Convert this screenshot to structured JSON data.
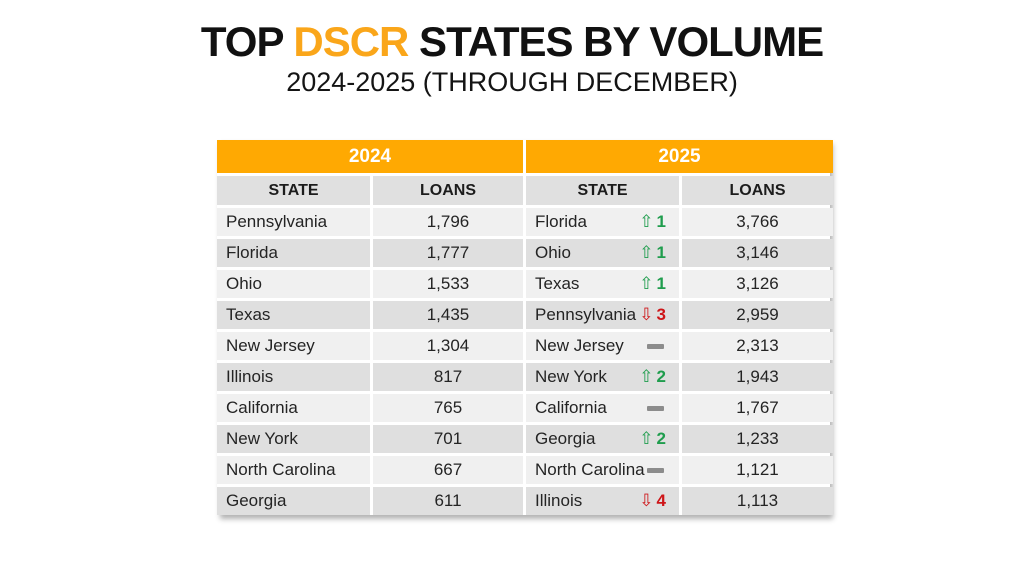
{
  "title": {
    "part1": "TOP ",
    "highlight": "DSCR",
    "part2": " STATES BY VOLUME"
  },
  "subtitle": "2024-2025 (THROUGH DECEMBER)",
  "colors": {
    "accent_orange": "#FFA902",
    "title_orange": "#FAA61A",
    "header_gray": "#E0E0E0",
    "row_light": "#F0F0F0",
    "row_dark": "#DFDFDF",
    "up_green": "#1F9D4D",
    "down_red": "#CE1518",
    "dash_gray": "#8C8C8C"
  },
  "icons": {
    "up": "⇧",
    "down": "⇩",
    "same": "dash-icon"
  },
  "table": {
    "group_headers": [
      "2024",
      "2025"
    ],
    "column_headers": [
      "STATE",
      "LOANS",
      "STATE",
      "LOANS"
    ],
    "rows": [
      {
        "state_2024": "Pennsylvania",
        "loans_2024": "1,796",
        "state_2025": "Florida",
        "change": {
          "dir": "up",
          "value": "1"
        },
        "loans_2025": "3,766"
      },
      {
        "state_2024": "Florida",
        "loans_2024": "1,777",
        "state_2025": "Ohio",
        "change": {
          "dir": "up",
          "value": "1"
        },
        "loans_2025": "3,146"
      },
      {
        "state_2024": "Ohio",
        "loans_2024": "1,533",
        "state_2025": "Texas",
        "change": {
          "dir": "up",
          "value": "1"
        },
        "loans_2025": "3,126"
      },
      {
        "state_2024": "Texas",
        "loans_2024": "1,435",
        "state_2025": "Pennsylvania",
        "change": {
          "dir": "down",
          "value": "3"
        },
        "loans_2025": "2,959"
      },
      {
        "state_2024": "New Jersey",
        "loans_2024": "1,304",
        "state_2025": "New Jersey",
        "change": {
          "dir": "same",
          "value": ""
        },
        "loans_2025": "2,313"
      },
      {
        "state_2024": "Illinois",
        "loans_2024": "817",
        "state_2025": "New York",
        "change": {
          "dir": "up",
          "value": "2"
        },
        "loans_2025": "1,943"
      },
      {
        "state_2024": "California",
        "loans_2024": "765",
        "state_2025": "California",
        "change": {
          "dir": "same",
          "value": ""
        },
        "loans_2025": "1,767"
      },
      {
        "state_2024": "New York",
        "loans_2024": "701",
        "state_2025": "Georgia",
        "change": {
          "dir": "up",
          "value": "2"
        },
        "loans_2025": "1,233"
      },
      {
        "state_2024": "North Carolina",
        "loans_2024": "667",
        "state_2025": "North Carolina",
        "change": {
          "dir": "same",
          "value": ""
        },
        "loans_2025": "1,121"
      },
      {
        "state_2024": "Georgia",
        "loans_2024": "611",
        "state_2025": "Illinois",
        "change": {
          "dir": "down",
          "value": "4"
        },
        "loans_2025": "1,113"
      }
    ]
  },
  "chart_data": {
    "type": "table",
    "title": "TOP DSCR STATES BY VOLUME",
    "subtitle": "2024-2025 (THROUGH DECEMBER)",
    "series": [
      {
        "name": "2024",
        "columns": [
          "STATE",
          "LOANS"
        ],
        "rows": [
          [
            "Pennsylvania",
            1796
          ],
          [
            "Florida",
            1777
          ],
          [
            "Ohio",
            1533
          ],
          [
            "Texas",
            1435
          ],
          [
            "New Jersey",
            1304
          ],
          [
            "Illinois",
            817
          ],
          [
            "California",
            765
          ],
          [
            "New York",
            701
          ],
          [
            "North Carolina",
            667
          ],
          [
            "Georgia",
            611
          ]
        ]
      },
      {
        "name": "2025",
        "columns": [
          "STATE",
          "RANK_CHANGE",
          "LOANS"
        ],
        "rows": [
          [
            "Florida",
            "+1",
            3766
          ],
          [
            "Ohio",
            "+1",
            3146
          ],
          [
            "Texas",
            "+1",
            3126
          ],
          [
            "Pennsylvania",
            "-3",
            2959
          ],
          [
            "New Jersey",
            "0",
            2313
          ],
          [
            "New York",
            "+2",
            1943
          ],
          [
            "California",
            "0",
            1767
          ],
          [
            "Georgia",
            "+2",
            1233
          ],
          [
            "North Carolina",
            "0",
            1121
          ],
          [
            "Illinois",
            "-4",
            1113
          ]
        ]
      }
    ]
  }
}
